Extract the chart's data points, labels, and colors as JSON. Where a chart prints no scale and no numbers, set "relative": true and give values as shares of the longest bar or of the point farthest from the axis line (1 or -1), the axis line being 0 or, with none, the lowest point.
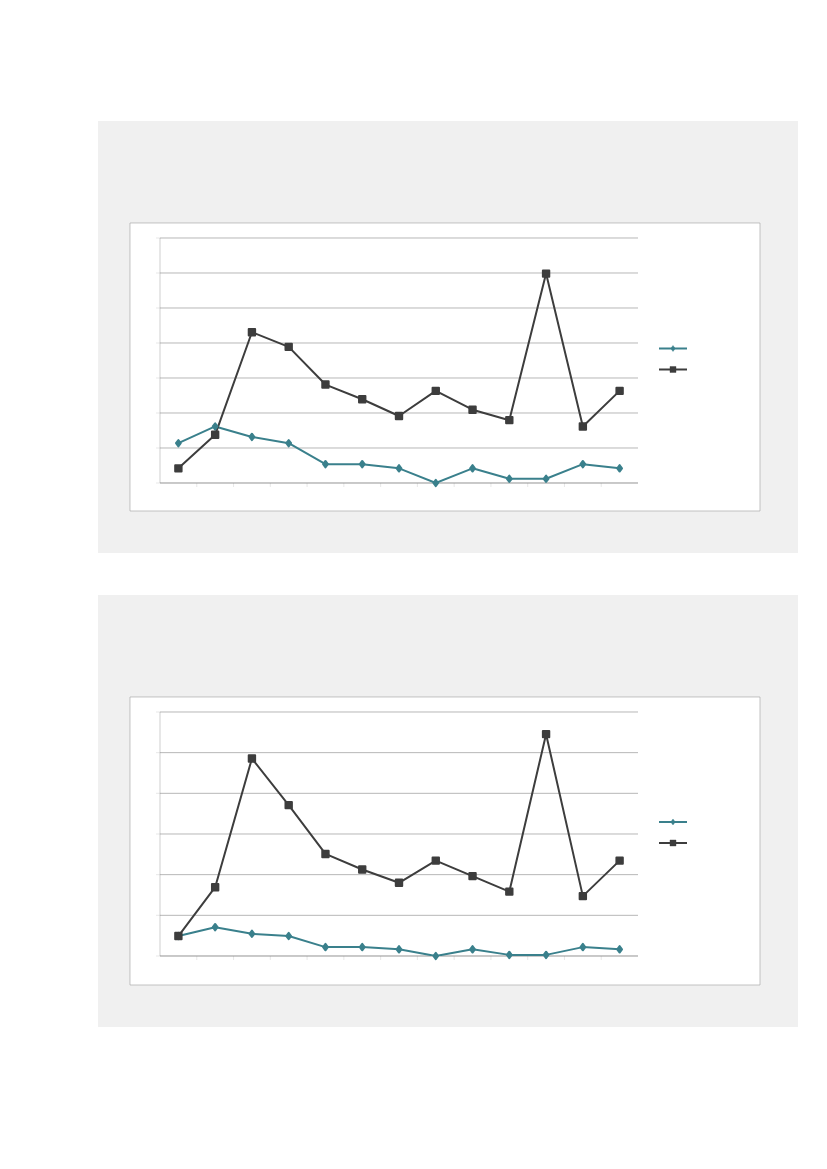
{
  "chart_data": [
    {
      "type": "line",
      "relative": true,
      "grid": "y",
      "categories": [
        null,
        null,
        null,
        null,
        null,
        null,
        null,
        null,
        null,
        null,
        null,
        null,
        null
      ],
      "series": [
        {
          "color": "#3a808c",
          "marker": "diamond",
          "values": [
            0.19,
            0.27,
            0.22,
            0.19,
            0.09,
            0.09,
            0.07,
            0,
            0.07,
            0.02,
            0.02,
            0.09,
            0.07
          ]
        },
        {
          "color": "#3d3d3d",
          "marker": "square",
          "values": [
            0.07,
            0.23,
            0.72,
            0.65,
            0.47,
            0.4,
            0.32,
            0.44,
            0.35,
            0.3,
            1,
            0.27,
            0.44
          ]
        }
      ]
    },
    {
      "type": "line",
      "relative": true,
      "grid": "y",
      "categories": [
        null,
        null,
        null,
        null,
        null,
        null,
        null,
        null,
        null,
        null,
        null,
        null,
        null
      ],
      "series": [
        {
          "color": "#3a808c",
          "marker": "diamond",
          "values": [
            0.09,
            0.13,
            0.1,
            0.09,
            0.04,
            0.04,
            0.03,
            0,
            0.03,
            0.005,
            0.005,
            0.04,
            0.03
          ]
        },
        {
          "color": "#3d3d3d",
          "marker": "square",
          "values": [
            0.09,
            0.31,
            0.89,
            0.68,
            0.46,
            0.39,
            0.33,
            0.43,
            0.36,
            0.29,
            1,
            0.27,
            0.43
          ]
        }
      ]
    }
  ]
}
